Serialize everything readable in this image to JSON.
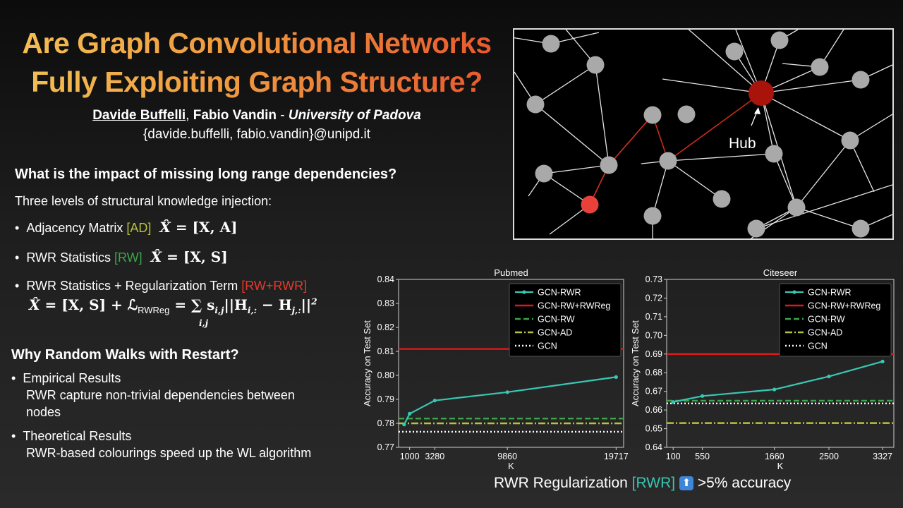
{
  "title_line1": "Are Graph Convolutional Networks",
  "title_line2": "Fully Exploiting Graph Structure?",
  "authors": {
    "author1": "Davide Buffelli",
    "sep": ", ",
    "author2": "Fabio Vandin",
    "dash": " - ",
    "university": "University of Padova",
    "emails": "{davide.buffelli, fabio.vandin}@unipd.it"
  },
  "section1": {
    "question": "What is the impact of missing long range dependencies?",
    "intro": "Three levels of structural knowledge injection:",
    "bullets": [
      {
        "label": "Adjacency Matrix ",
        "tag": "[AD]",
        "formula_lhs": "X̂",
        "formula_rhs": " = [X, A]"
      },
      {
        "label": "RWR Statistics ",
        "tag": "[RW]",
        "formula_lhs": "X̂",
        "formula_rhs": " = [X, S]"
      },
      {
        "label": "RWR Statistics + Regularization Term ",
        "tag": "[RW+RWR]",
        "formula_lhs": "X̂",
        "formula_rhs": " = [X, S]  +  ℒ",
        "formula_sub": "RWReg",
        "formula_tail": " = ∑ s",
        "formula_tail_sub": "i,j",
        "formula_tail2": "||H",
        "formula_tail2_sub": "i,:",
        "formula_tail3": " − H",
        "formula_tail3_sub": "j,:",
        "formula_tail4": "||",
        "formula_sup": "2",
        "formula_sum_sub": "i,j"
      }
    ]
  },
  "section2": {
    "question": "Why Random Walks with Restart?",
    "bullets": [
      {
        "title": "Empirical Results",
        "line1": "RWR capture non-trivial dependencies between",
        "line2": "nodes"
      },
      {
        "title": "Theoretical Results",
        "line1": "RWR-based colourings speed up the WL algorithm"
      }
    ]
  },
  "graph": {
    "hub_label": "Hub",
    "colors": {
      "node": "#a9a9a9",
      "hub": "#a8130c",
      "start": "#e8413c",
      "path": "#cc2a1e",
      "edge": "#e6e6e6"
    }
  },
  "legend": [
    "GCN-RWR",
    "GCN-RW+RWReg",
    "GCN-RW",
    "GCN-AD",
    "GCN"
  ],
  "colors": {
    "rwr": "#38c7b4",
    "reg": "#e0191c",
    "rw": "#3aa54a",
    "ad": "#b9c23a",
    "gcn": "#ffffff"
  },
  "chart_data": [
    {
      "type": "line",
      "title": "Pubmed",
      "xlabel": "K",
      "ylabel": "Accuracy on Test Set",
      "ylim": [
        0.77,
        0.84
      ],
      "xlim": [
        0,
        20400
      ],
      "xticks": [
        1000,
        3280,
        9860,
        19717
      ],
      "xtick_labels": [
        "1000",
        "3280",
        "9860",
        "19717"
      ],
      "yticks": [
        0.77,
        0.78,
        0.79,
        0.8,
        0.81,
        0.82,
        0.83,
        0.84
      ],
      "ytick_labels": [
        "0.77",
        "0.78",
        "0.79",
        "0.80",
        "0.81",
        "0.82",
        "0.83",
        "0.84"
      ],
      "series": [
        {
          "name": "GCN-RWR",
          "x": [
            500,
            1000,
            3280,
            9860,
            19717
          ],
          "y": [
            0.7795,
            0.784,
            0.7895,
            0.793,
            0.7993
          ]
        },
        {
          "name": "GCN-RW+RWReg",
          "hline": 0.811
        },
        {
          "name": "GCN-RW",
          "hline": 0.782
        },
        {
          "name": "GCN-AD",
          "hline": 0.78
        },
        {
          "name": "GCN",
          "hline": 0.7765
        }
      ],
      "legend_position": "top-right",
      "grid": false
    },
    {
      "type": "line",
      "title": "Citeseer",
      "xlabel": "K",
      "ylabel": "Accuracy on Test Set",
      "ylim": [
        0.64,
        0.73
      ],
      "xlim": [
        0,
        3500
      ],
      "xticks": [
        100,
        550,
        1660,
        2500,
        3327
      ],
      "xtick_labels": [
        "100",
        "550",
        "1660",
        "2500",
        "3327"
      ],
      "yticks": [
        0.64,
        0.65,
        0.66,
        0.67,
        0.68,
        0.69,
        0.7,
        0.71,
        0.72,
        0.73
      ],
      "ytick_labels": [
        "0.64",
        "0.65",
        "0.66",
        "0.67",
        "0.68",
        "0.69",
        "0.70",
        "0.71",
        "0.72",
        "0.73"
      ],
      "series": [
        {
          "name": "GCN-RWR",
          "x": [
            100,
            550,
            1660,
            2500,
            3327
          ],
          "y": [
            0.6643,
            0.6675,
            0.671,
            0.678,
            0.686
          ]
        },
        {
          "name": "GCN-RW+RWReg",
          "hline": 0.69
        },
        {
          "name": "GCN-RW",
          "hline": 0.665
        },
        {
          "name": "GCN-AD",
          "hline": 0.653
        },
        {
          "name": "GCN",
          "hline": 0.6635
        }
      ],
      "legend_position": "top-right",
      "grid": false
    }
  ],
  "footer": {
    "text1": "RWR Regularization ",
    "tag": "[RWR]",
    "arrow": "⬆",
    "text2": " >5% accuracy"
  }
}
